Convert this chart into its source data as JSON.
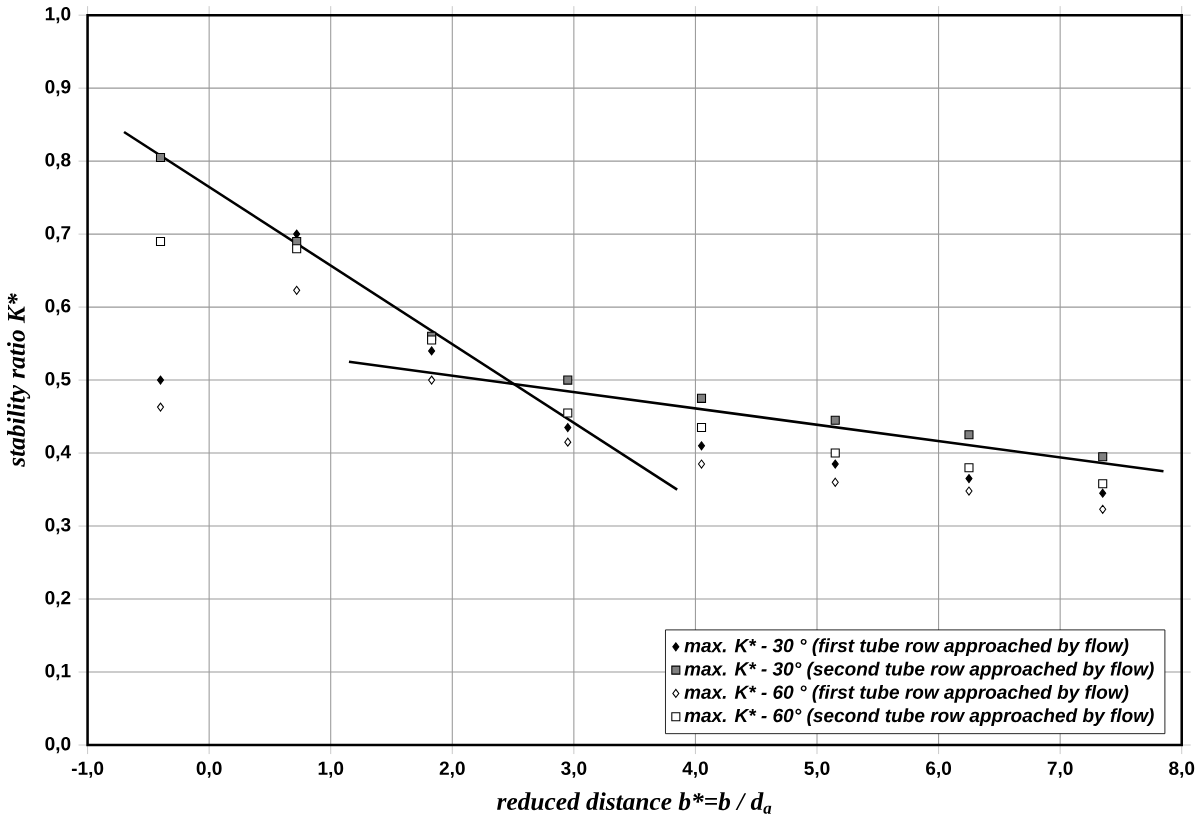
{
  "chart_data": {
    "type": "scatter",
    "xlabel": "reduced distance b*=b / d$_{a}$",
    "ylabel": "stability ratio  K*",
    "x": [
      -0.4,
      0.72,
      1.83,
      2.95,
      4.05,
      5.15,
      6.25,
      7.35
    ],
    "series": [
      {
        "name": "max. K* - 30 ° (first tube row approached by flow)",
        "color": "#000000",
        "marker": "diamond",
        "values": [
          0.5,
          0.7,
          0.54,
          0.435,
          0.41,
          0.385,
          0.365,
          0.345
        ]
      },
      {
        "name": "max. K* - 30° (second tube row approached by flow)",
        "color": "#808080",
        "marker": "square",
        "values": [
          0.805,
          0.69,
          0.56,
          0.5,
          0.475,
          0.445,
          0.425,
          0.395
        ]
      },
      {
        "name": "max. K* - 60 ° (first  tube row approached by flow)",
        "color": "#ffffff",
        "marker": "diamond",
        "values": [
          0.463,
          0.623,
          0.5,
          0.415,
          0.385,
          0.36,
          0.348,
          0.323
        ]
      },
      {
        "name": "max. K* - 60° (second tube row approached by flow)",
        "color": "#ffffff",
        "marker": "square",
        "values": [
          0.69,
          0.68,
          0.555,
          0.455,
          0.435,
          0.4,
          0.38,
          0.358
        ]
      },
      {
        "type": "line",
        "color": "#000000",
        "marker": "none",
        "x": [
          -0.7,
          3.85
        ],
        "values": [
          0.84,
          0.35
        ]
      },
      {
        "type": "line",
        "color": "#000000",
        "marker": "none",
        "x": [
          1.15,
          7.85
        ],
        "values": [
          0.525,
          0.375
        ]
      }
    ],
    "xlim": [
      -1,
      8
    ],
    "ylim": [
      0,
      1
    ],
    "xticks": [
      {
        "value": -1,
        "label": "-1,0"
      },
      {
        "value": 0,
        "label": "0,0"
      },
      {
        "value": 1,
        "label": "1,0"
      },
      {
        "value": 2,
        "label": "2,0"
      },
      {
        "value": 3,
        "label": "3,0"
      },
      {
        "value": 4,
        "label": "4,0"
      },
      {
        "value": 5,
        "label": "5,0"
      },
      {
        "value": 6,
        "label": "6,0"
      },
      {
        "value": 7,
        "label": "7,0"
      },
      {
        "value": 8,
        "label": "8,0"
      }
    ],
    "yticks": [
      {
        "value": 0,
        "label": "0,0"
      },
      {
        "value": 0.1,
        "label": "0,1"
      },
      {
        "value": 0.2,
        "label": "0,2"
      },
      {
        "value": 0.3,
        "label": "0,3"
      },
      {
        "value": 0.4,
        "label": "0,4"
      },
      {
        "value": 0.5,
        "label": "0,5"
      },
      {
        "value": 0.6,
        "label": "0,6"
      },
      {
        "value": 0.7,
        "label": "0,7"
      },
      {
        "value": 0.8,
        "label": "0,8"
      },
      {
        "value": 0.9,
        "label": "0,9"
      },
      {
        "value": 1,
        "label": "1,0"
      }
    ],
    "grid": true,
    "legend": "bottom right"
  }
}
